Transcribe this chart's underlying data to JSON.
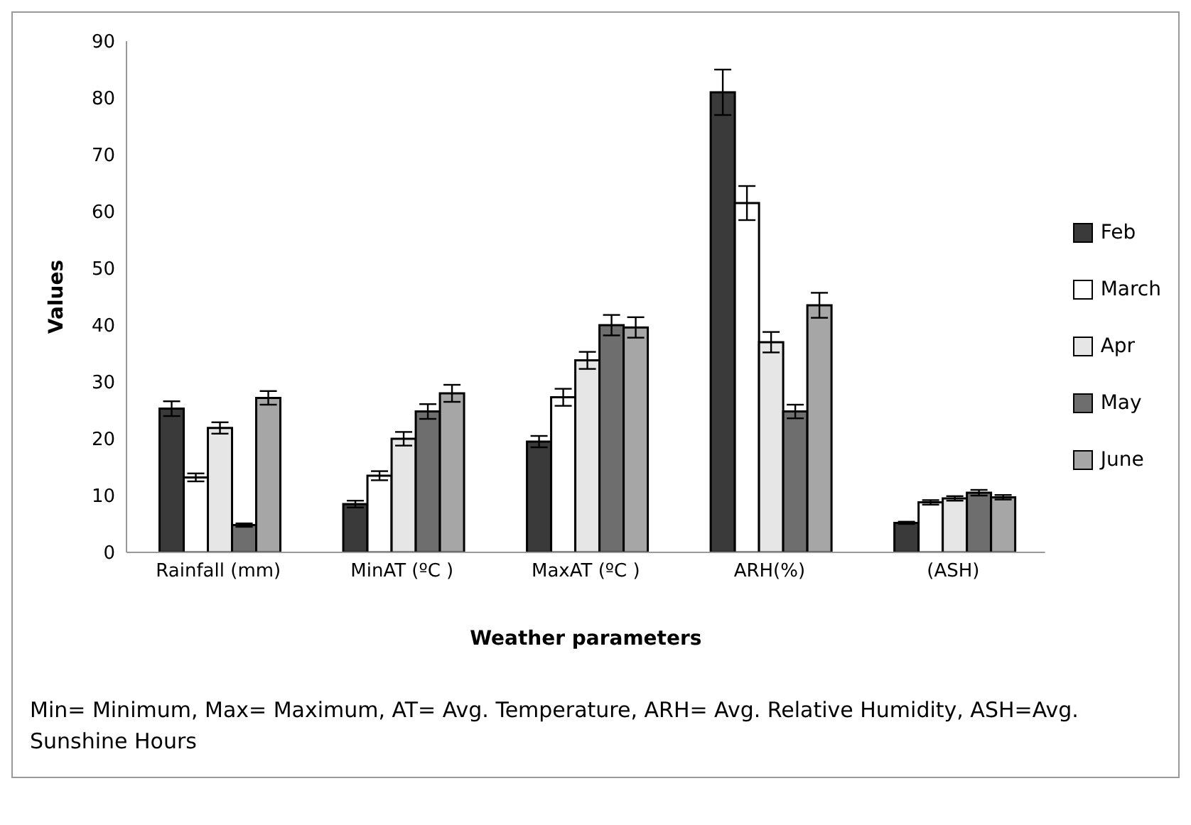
{
  "chart_data": {
    "type": "bar",
    "xlabel": "Weather parameters",
    "ylabel": "Values",
    "categories": [
      "Rainfall (mm)",
      "MinAT (ºC )",
      "MaxAT (ºC )",
      "ARH(%)",
      "(ASH)"
    ],
    "series": [
      {
        "name": "Feb",
        "color": "#3a3a3a",
        "values": [
          25.3,
          8.5,
          19.5,
          81,
          5.2
        ],
        "errors": [
          1.3,
          0.6,
          1,
          4,
          0.2
        ]
      },
      {
        "name": "March",
        "color": "#ffffff",
        "values": [
          13.2,
          13.5,
          27.3,
          61.5,
          8.8
        ],
        "errors": [
          0.7,
          0.8,
          1.5,
          3,
          0.4
        ]
      },
      {
        "name": "Apr",
        "color": "#e6e6e6",
        "values": [
          21.9,
          20,
          33.8,
          37,
          9.5
        ],
        "errors": [
          1,
          1.2,
          1.5,
          1.8,
          0.4
        ]
      },
      {
        "name": "May",
        "color": "#6e6e6e",
        "values": [
          4.8,
          24.8,
          40,
          24.8,
          10.5
        ],
        "errors": [
          0.3,
          1.3,
          1.8,
          1.2,
          0.5
        ]
      },
      {
        "name": "June",
        "color": "#a6a6a6",
        "values": [
          27.2,
          28,
          39.6,
          43.5,
          9.7
        ],
        "errors": [
          1.2,
          1.5,
          1.8,
          2.2,
          0.4
        ]
      }
    ],
    "ylim": [
      0,
      90
    ],
    "yticks": [
      0,
      10,
      20,
      30,
      40,
      50,
      60,
      70,
      80,
      90
    ],
    "grid": false,
    "legend": "right",
    "annotations": [
      "Min= Minimum, Max= Maximum, AT= Avg. Temperature, ARH= Avg. Relative Humidity, ASH=Avg. Sunshine Hours"
    ]
  }
}
